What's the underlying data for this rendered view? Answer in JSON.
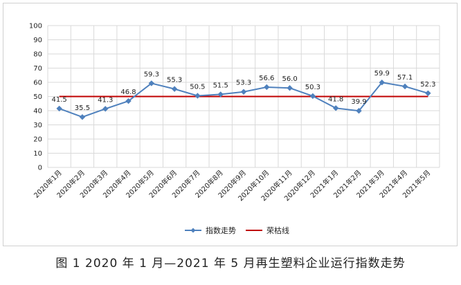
{
  "chart_data": {
    "type": "line",
    "categories": [
      "2020年1月",
      "2020年2月",
      "2020年3月",
      "2020年4月",
      "2020年5月",
      "2020年6月",
      "2020年7月",
      "2020年8月",
      "2020年9月",
      "2020年10月",
      "2020年11月",
      "2020年12月",
      "2021年1月",
      "2021年2月",
      "2021年3月",
      "2021年4月",
      "2021年5月"
    ],
    "series": [
      {
        "name": "指数走势",
        "values": [
          41.5,
          35.5,
          41.3,
          46.8,
          59.3,
          55.3,
          50.5,
          51.5,
          53.3,
          56.6,
          56.0,
          50.3,
          41.8,
          39.9,
          59.9,
          57.1,
          52.3
        ],
        "color": "#4f81bd"
      },
      {
        "name": "荣枯线",
        "values": [
          50,
          50,
          50,
          50,
          50,
          50,
          50,
          50,
          50,
          50,
          50,
          50,
          50,
          50,
          50,
          50,
          50
        ],
        "color": "#c00000"
      }
    ],
    "data_labels": [
      "41.5",
      "35.5",
      "41.3",
      "46.8",
      "59.3",
      "55.3",
      "50.5",
      "51.5",
      "53.3",
      "56.6",
      "56.0",
      "50.3",
      "41.8",
      "39.9",
      "59.9",
      "57.1",
      "52.3"
    ],
    "ylim": [
      0,
      100
    ],
    "yticks": [
      0,
      10,
      20,
      30,
      40,
      50,
      60,
      70,
      80,
      90,
      100
    ],
    "grid": true,
    "legend": "bottom",
    "title": "",
    "xlabel": "",
    "ylabel": ""
  },
  "caption": "图 1  2020 年 1 月—2021 年 5 月再生塑料企业运行指数走势"
}
